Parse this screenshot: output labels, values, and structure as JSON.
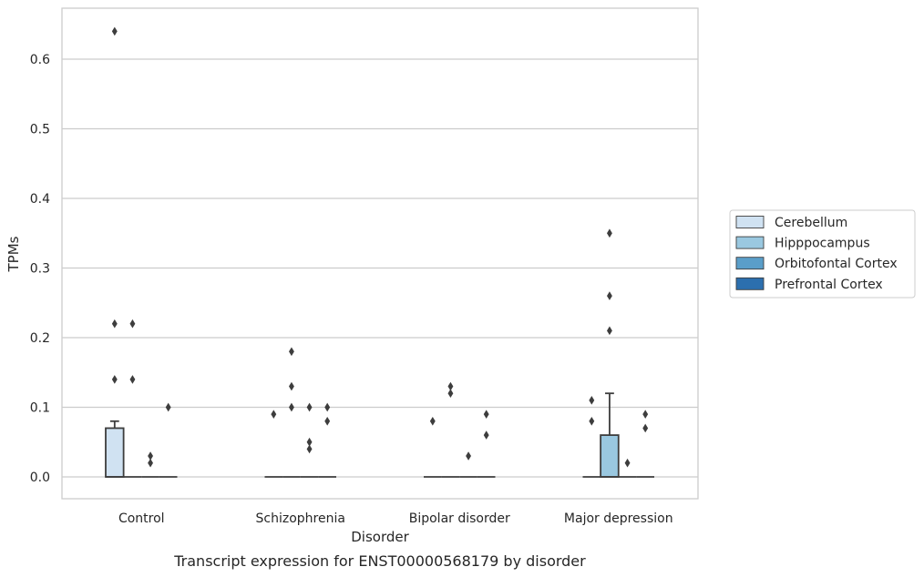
{
  "chart_data": {
    "type": "box",
    "title": "",
    "caption": "Transcript expression for ENST00000568179 by disorder",
    "xlabel": "Disorder",
    "ylabel": "TPMs",
    "ylim": [
      -0.032,
      0.67
    ],
    "yticks": [
      0.0,
      0.1,
      0.2,
      0.3,
      0.4,
      0.5,
      0.6
    ],
    "ytick_labels": [
      "0.0",
      "0.1",
      "0.2",
      "0.3",
      "0.4",
      "0.5",
      "0.6"
    ],
    "grid": true,
    "legend_position": "right",
    "categories": [
      "Control",
      "Schizophrenia",
      "Bipolar disorder",
      "Major depression"
    ],
    "series": [
      {
        "name": "Cerebellum",
        "color": "#d0e2f2",
        "boxes": [
          {
            "q1": 0.0,
            "median": 0.0,
            "q3": 0.07,
            "whisker_low": 0.0,
            "whisker_high": 0.08,
            "outliers": [
              0.64,
              0.22,
              0.14
            ]
          },
          {
            "q1": 0.0,
            "median": 0.0,
            "q3": 0.0,
            "whisker_low": 0.0,
            "whisker_high": 0.0,
            "outliers": [
              0.09
            ]
          },
          {
            "q1": 0.0,
            "median": 0.0,
            "q3": 0.0,
            "whisker_low": 0.0,
            "whisker_high": 0.0,
            "outliers": [
              0.08
            ]
          },
          {
            "q1": 0.0,
            "median": 0.0,
            "q3": 0.0,
            "whisker_low": 0.0,
            "whisker_high": 0.0,
            "outliers": [
              0.11,
              0.08
            ]
          }
        ]
      },
      {
        "name": "Hipppocampus",
        "color": "#9ac8e0",
        "boxes": [
          {
            "q1": 0.0,
            "median": 0.0,
            "q3": 0.0,
            "whisker_low": 0.0,
            "whisker_high": 0.0,
            "outliers": [
              0.22,
              0.14
            ]
          },
          {
            "q1": 0.0,
            "median": 0.0,
            "q3": 0.0,
            "whisker_low": 0.0,
            "whisker_high": 0.0,
            "outliers": [
              0.18,
              0.13,
              0.1
            ]
          },
          {
            "q1": 0.0,
            "median": 0.0,
            "q3": 0.0,
            "whisker_low": 0.0,
            "whisker_high": 0.0,
            "outliers": [
              0.13,
              0.12
            ]
          },
          {
            "q1": 0.0,
            "median": 0.0,
            "q3": 0.06,
            "whisker_low": 0.0,
            "whisker_high": 0.12,
            "outliers": [
              0.35,
              0.26,
              0.21
            ]
          }
        ]
      },
      {
        "name": "Orbitofontal Cortex",
        "color": "#5a9ec9",
        "boxes": [
          {
            "q1": 0.0,
            "median": 0.0,
            "q3": 0.0,
            "whisker_low": 0.0,
            "whisker_high": 0.0,
            "outliers": [
              0.03,
              0.02
            ]
          },
          {
            "q1": 0.0,
            "median": 0.0,
            "q3": 0.0,
            "whisker_low": 0.0,
            "whisker_high": 0.0,
            "outliers": [
              0.1,
              0.05,
              0.04
            ]
          },
          {
            "q1": 0.0,
            "median": 0.0,
            "q3": 0.0,
            "whisker_low": 0.0,
            "whisker_high": 0.0,
            "outliers": [
              0.03
            ]
          },
          {
            "q1": 0.0,
            "median": 0.0,
            "q3": 0.0,
            "whisker_low": 0.0,
            "whisker_high": 0.0,
            "outliers": [
              0.02
            ]
          }
        ]
      },
      {
        "name": "Prefrontal Cortex",
        "color": "#2c6fae",
        "boxes": [
          {
            "q1": 0.0,
            "median": 0.0,
            "q3": 0.0,
            "whisker_low": 0.0,
            "whisker_high": 0.0,
            "outliers": [
              0.1
            ]
          },
          {
            "q1": 0.0,
            "median": 0.0,
            "q3": 0.0,
            "whisker_low": 0.0,
            "whisker_high": 0.0,
            "outliers": [
              0.1,
              0.08
            ]
          },
          {
            "q1": 0.0,
            "median": 0.0,
            "q3": 0.0,
            "whisker_low": 0.0,
            "whisker_high": 0.0,
            "outliers": [
              0.09,
              0.06
            ]
          },
          {
            "q1": 0.0,
            "median": 0.0,
            "q3": 0.0,
            "whisker_low": 0.0,
            "whisker_high": 0.0,
            "outliers": [
              0.09,
              0.07
            ]
          }
        ]
      }
    ]
  }
}
